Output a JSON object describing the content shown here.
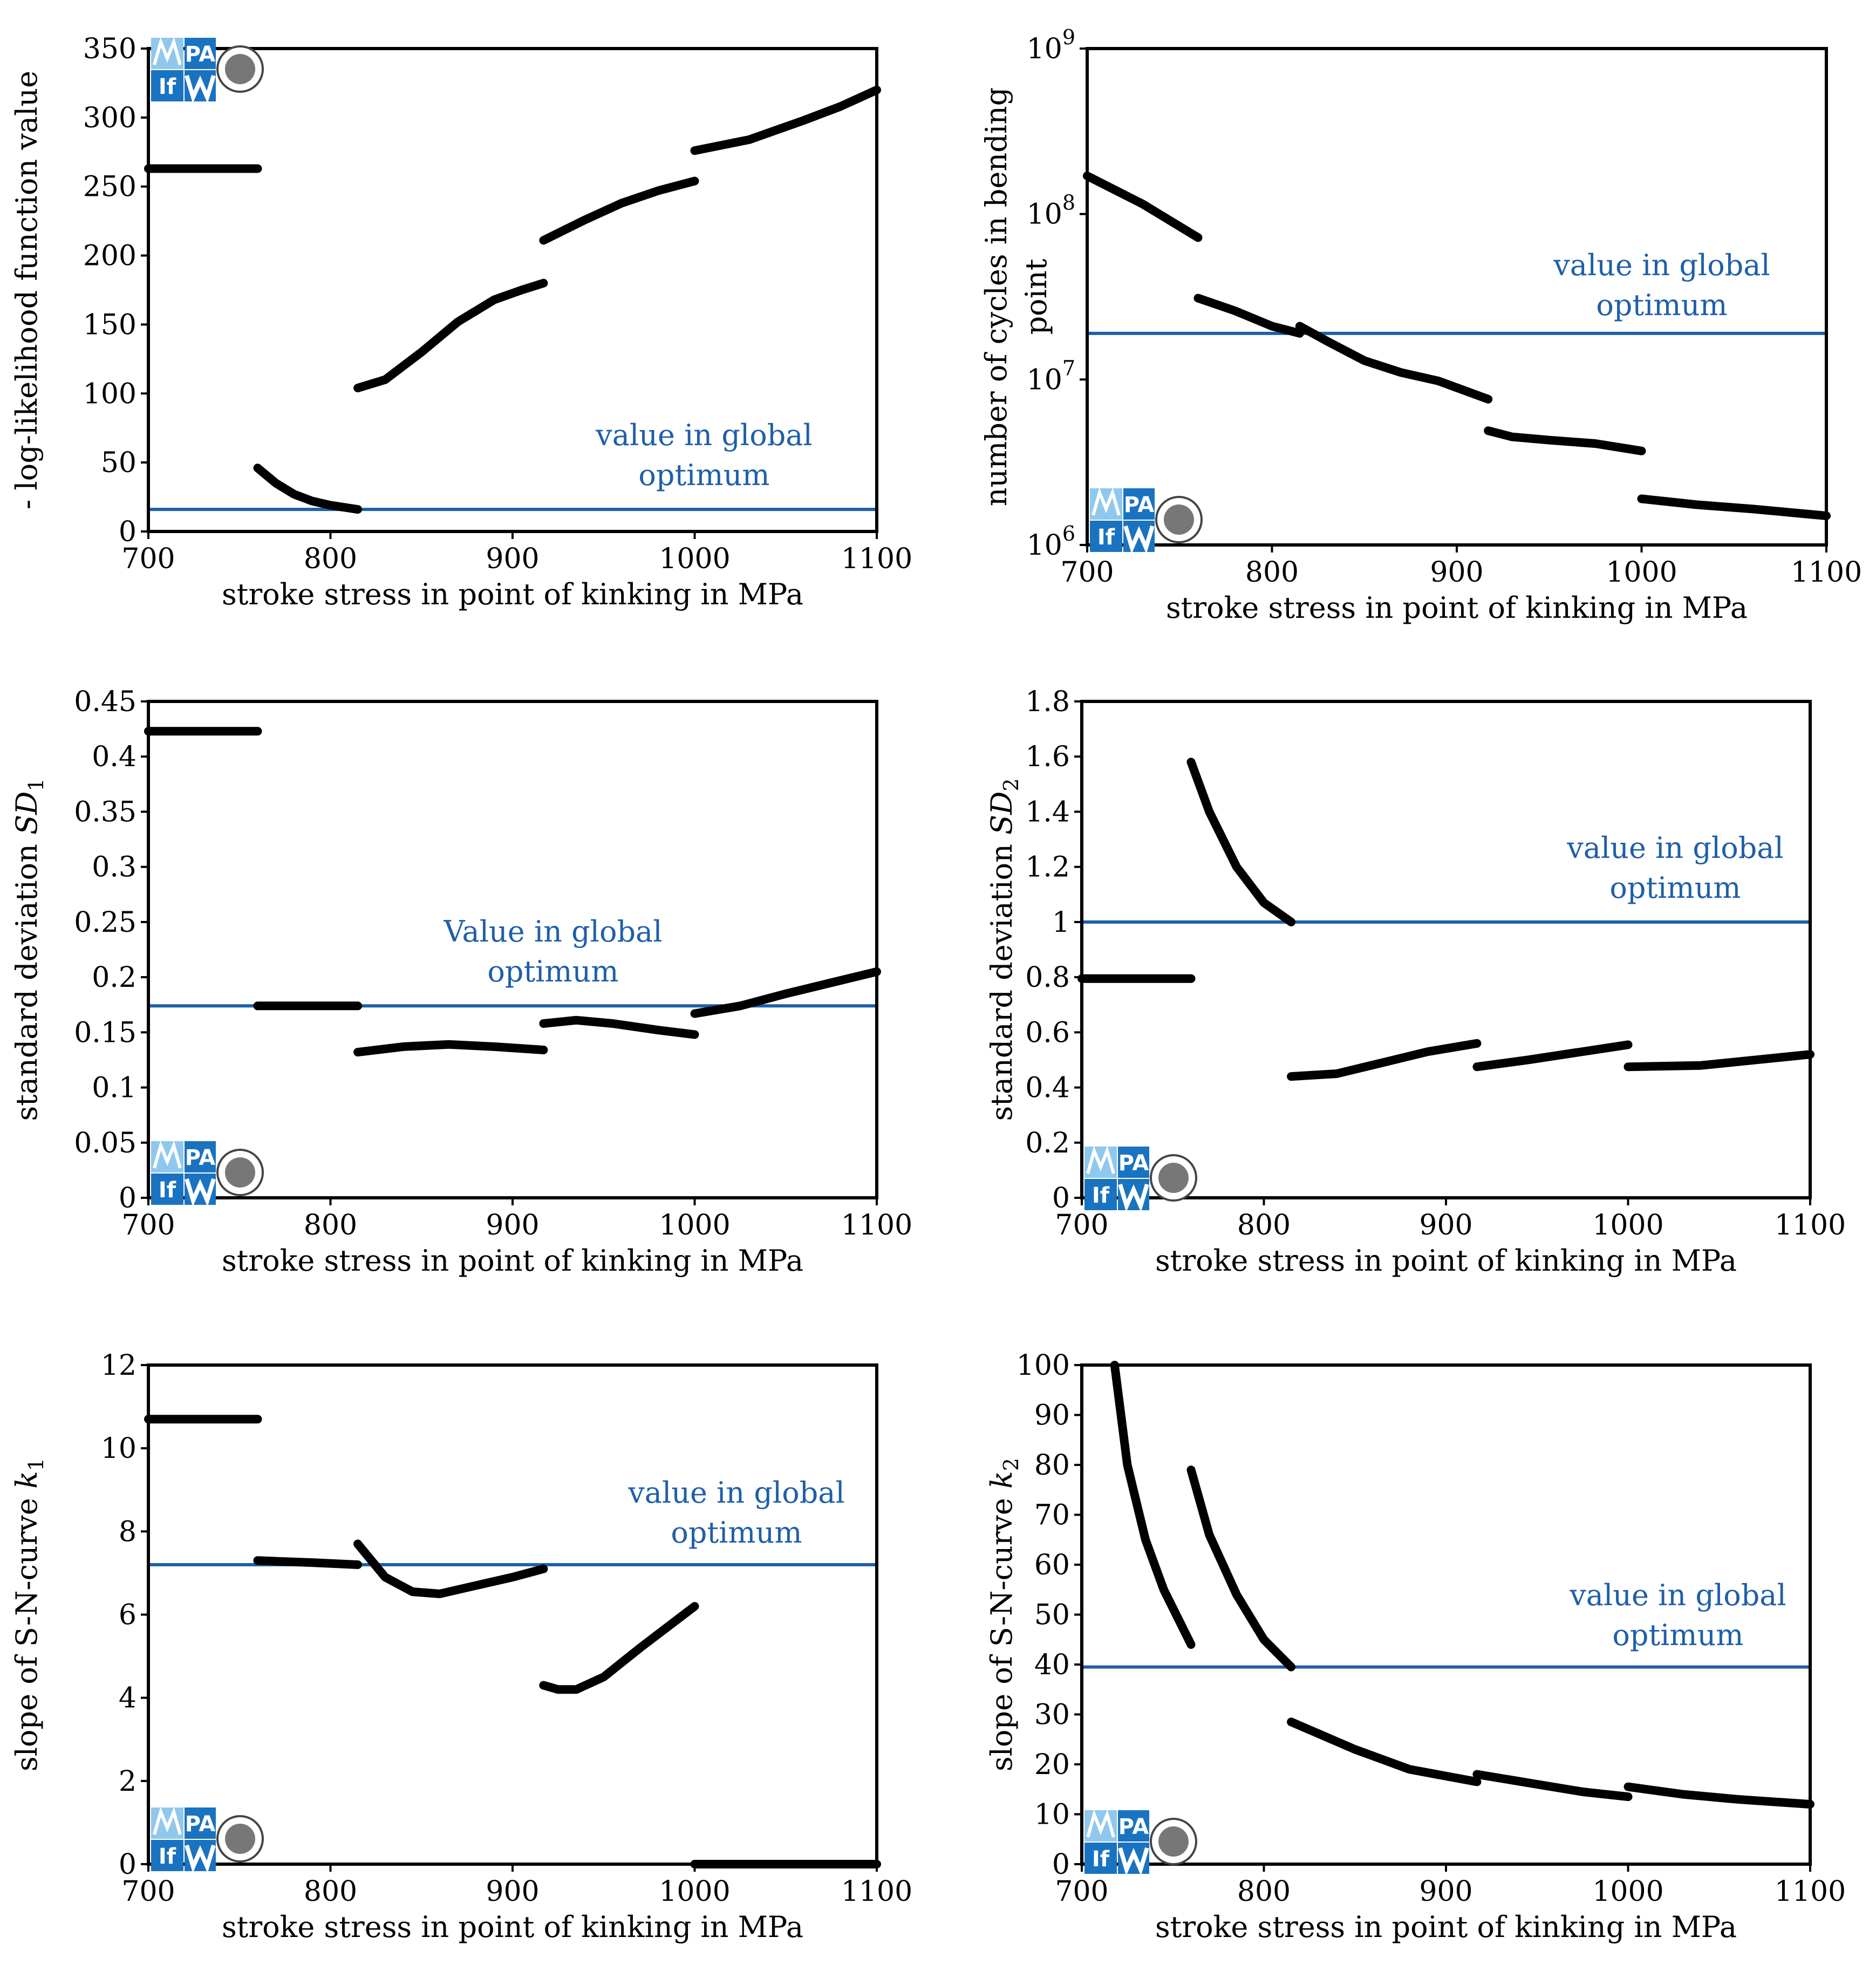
{
  "figure": {
    "colors": {
      "curve": "#000000",
      "optimum_line": "#1f5fa8",
      "optimum_text": "#1f5fa8",
      "logo_dark": "#1a73c0",
      "logo_light": "#8fc8ec"
    },
    "logo": {
      "top_text": "PA",
      "bottom_text": "If",
      "icon": "mpa-ifw-logo-icon"
    }
  },
  "chart_data": [
    {
      "type": "line",
      "id": "nll",
      "title": "",
      "xlabel": "stroke stress in point of kinking in MPa",
      "ylabel": "- log-likelihood function value",
      "xlim": [
        700,
        1100
      ],
      "ylim": [
        0,
        350
      ],
      "scale": "linear",
      "xticks": [
        "700",
        "800",
        "900",
        "1000",
        "1100"
      ],
      "yticks": [
        "0",
        "50",
        "100",
        "150",
        "200",
        "250",
        "300",
        "350"
      ],
      "optimum_value": 16,
      "optimum_label": [
        "value in global",
        "optimum"
      ],
      "series": [
        {
          "name": "segment 1",
          "x": [
            700,
            760
          ],
          "y": [
            263,
            263
          ]
        },
        {
          "name": "segment 2",
          "x": [
            760,
            770,
            780,
            790,
            800,
            815
          ],
          "y": [
            46,
            35,
            27,
            22,
            19,
            16
          ]
        },
        {
          "name": "segment 3",
          "x": [
            815,
            830,
            850,
            870,
            890,
            905,
            917
          ],
          "y": [
            104,
            110,
            130,
            152,
            168,
            175,
            180
          ]
        },
        {
          "name": "segment 4",
          "x": [
            917,
            940,
            960,
            980,
            1000
          ],
          "y": [
            211,
            226,
            238,
            247,
            254
          ]
        },
        {
          "name": "segment 5",
          "x": [
            1000,
            1030,
            1060,
            1080,
            1100
          ],
          "y": [
            276,
            284,
            298,
            308,
            320
          ]
        }
      ]
    },
    {
      "type": "line",
      "id": "cycles",
      "title": "",
      "xlabel": "stroke stress in point of kinking in MPa",
      "ylabel": [
        "number of cycles in bending",
        "point"
      ],
      "xlim": [
        700,
        1100
      ],
      "ylim": [
        1000000,
        1000000000
      ],
      "scale": "log",
      "xticks": [
        "700",
        "800",
        "900",
        "1000",
        "1100"
      ],
      "yticks": [
        "10^6",
        "10^7",
        "10^8",
        "10^9"
      ],
      "optimum_value": 19000000,
      "optimum_label": [
        "value in global",
        "optimum"
      ],
      "series": [
        {
          "name": "segment 1",
          "x": [
            700,
            730,
            760
          ],
          "y": [
            170000000,
            115000000,
            72000000
          ]
        },
        {
          "name": "segment 2",
          "x": [
            760,
            780,
            800,
            815
          ],
          "y": [
            31000000,
            26000000,
            21000000,
            19000000
          ]
        },
        {
          "name": "segment 3",
          "x": [
            815,
            830,
            850,
            870,
            890,
            917
          ],
          "y": [
            21000000,
            17000000,
            13000000,
            11000000,
            9800000,
            7600000
          ]
        },
        {
          "name": "segment 4",
          "x": [
            917,
            930,
            950,
            975,
            1000
          ],
          "y": [
            4900000,
            4500000,
            4300000,
            4100000,
            3700000
          ]
        },
        {
          "name": "segment 5",
          "x": [
            1000,
            1030,
            1060,
            1100
          ],
          "y": [
            1900000,
            1750000,
            1650000,
            1500000
          ]
        }
      ]
    },
    {
      "type": "line",
      "id": "sd1",
      "title": "",
      "xlabel": "stroke stress in point of kinking in MPa",
      "ylabel": "standard deviation SD1",
      "ylabel_main": "standard deviation ",
      "ylabel_var": "SD",
      "ylabel_sub": "1",
      "xlim": [
        700,
        1100
      ],
      "ylim": [
        0,
        0.45
      ],
      "scale": "linear",
      "xticks": [
        "700",
        "800",
        "900",
        "1000",
        "1100"
      ],
      "yticks": [
        "0",
        "0.05",
        "0.1",
        "0.15",
        "0.2",
        "0.25",
        "0.3",
        "0.35",
        "0.4",
        "0.45"
      ],
      "optimum_value": 0.174,
      "optimum_label": [
        "Value in global",
        "optimum"
      ],
      "series": [
        {
          "name": "segment 1",
          "x": [
            700,
            760
          ],
          "y": [
            0.423,
            0.423
          ]
        },
        {
          "name": "segment 2",
          "x": [
            760,
            815
          ],
          "y": [
            0.174,
            0.174
          ]
        },
        {
          "name": "segment 3",
          "x": [
            815,
            840,
            865,
            890,
            917
          ],
          "y": [
            0.132,
            0.137,
            0.139,
            0.137,
            0.134
          ]
        },
        {
          "name": "segment 4",
          "x": [
            917,
            935,
            955,
            980,
            1000
          ],
          "y": [
            0.158,
            0.161,
            0.158,
            0.152,
            0.148
          ]
        },
        {
          "name": "segment 5",
          "x": [
            1000,
            1025,
            1050,
            1075,
            1100
          ],
          "y": [
            0.167,
            0.174,
            0.185,
            0.195,
            0.205
          ]
        }
      ]
    },
    {
      "type": "line",
      "id": "sd2",
      "title": "",
      "xlabel": "stroke stress in point of kinking in MPa",
      "ylabel": "standard deviation SD2",
      "ylabel_main": "standard deviation ",
      "ylabel_var": "SD",
      "ylabel_sub": "2",
      "xlim": [
        700,
        1100
      ],
      "ylim": [
        0,
        1.8
      ],
      "scale": "linear",
      "xticks": [
        "700",
        "800",
        "900",
        "1000",
        "1100"
      ],
      "yticks": [
        "0",
        "0.2",
        "0.4",
        "0.6",
        "0.8",
        "1",
        "1.2",
        "1.4",
        "1.6",
        "1.8"
      ],
      "optimum_value": 1.0,
      "optimum_label": [
        "value in global",
        "optimum"
      ],
      "series": [
        {
          "name": "segment 1",
          "x": [
            700,
            760
          ],
          "y": [
            0.795,
            0.795
          ]
        },
        {
          "name": "segment 2",
          "x": [
            760,
            770,
            785,
            800,
            815
          ],
          "y": [
            1.58,
            1.4,
            1.2,
            1.07,
            1.0
          ]
        },
        {
          "name": "segment 3",
          "x": [
            815,
            840,
            865,
            890,
            917
          ],
          "y": [
            0.44,
            0.45,
            0.49,
            0.53,
            0.56
          ]
        },
        {
          "name": "segment 4",
          "x": [
            917,
            945,
            975,
            1000
          ],
          "y": [
            0.475,
            0.5,
            0.53,
            0.555
          ]
        },
        {
          "name": "segment 5",
          "x": [
            1000,
            1040,
            1070,
            1100
          ],
          "y": [
            0.475,
            0.48,
            0.5,
            0.52
          ]
        }
      ]
    },
    {
      "type": "line",
      "id": "k1",
      "title": "",
      "xlabel": "stroke stress in point of kinking in MPa",
      "ylabel": "slope of S-N-curve k1",
      "ylabel_main": "slope of S-N-curve ",
      "ylabel_var": "k",
      "ylabel_sub": "1",
      "xlim": [
        700,
        1100
      ],
      "ylim": [
        0,
        12
      ],
      "scale": "linear",
      "xticks": [
        "700",
        "800",
        "900",
        "1000",
        "1100"
      ],
      "yticks": [
        "0",
        "2",
        "4",
        "6",
        "8",
        "10",
        "12"
      ],
      "optimum_value": 7.2,
      "optimum_label": [
        "value in global",
        "optimum"
      ],
      "series": [
        {
          "name": "segment 1",
          "x": [
            700,
            760
          ],
          "y": [
            10.7,
            10.7
          ]
        },
        {
          "name": "segment 2",
          "x": [
            760,
            790,
            815
          ],
          "y": [
            7.3,
            7.25,
            7.2
          ]
        },
        {
          "name": "segment 3",
          "x": [
            815,
            830,
            845,
            860,
            880,
            900,
            917
          ],
          "y": [
            7.7,
            6.9,
            6.55,
            6.5,
            6.7,
            6.9,
            7.1
          ]
        },
        {
          "name": "segment 4",
          "x": [
            917,
            925,
            935,
            950,
            970,
            985,
            1000
          ],
          "y": [
            4.3,
            4.2,
            4.2,
            4.5,
            5.2,
            5.7,
            6.2
          ]
        },
        {
          "name": "segment 5",
          "x": [
            1000,
            1100
          ],
          "y": [
            0,
            0
          ]
        }
      ]
    },
    {
      "type": "line",
      "id": "k2",
      "title": "",
      "xlabel": "stroke stress in point of kinking in MPa",
      "ylabel": "slope of S-N-curve k2",
      "ylabel_main": "slope of S-N-curve ",
      "ylabel_var": "k",
      "ylabel_sub": "2",
      "xlim": [
        700,
        1100
      ],
      "ylim": [
        0,
        100
      ],
      "scale": "linear",
      "xticks": [
        "700",
        "800",
        "900",
        "1000",
        "1100"
      ],
      "yticks": [
        "0",
        "10",
        "20",
        "30",
        "40",
        "50",
        "60",
        "70",
        "80",
        "90",
        "100"
      ],
      "optimum_value": 39.5,
      "optimum_label": [
        "value in global",
        "optimum"
      ],
      "series": [
        {
          "name": "segment 1",
          "x": [
            718,
            725,
            735,
            745,
            760
          ],
          "y": [
            100,
            80,
            65,
            55,
            44
          ]
        },
        {
          "name": "segment 2",
          "x": [
            760,
            770,
            785,
            800,
            815
          ],
          "y": [
            79,
            66,
            54,
            45,
            39.5
          ]
        },
        {
          "name": "segment 3",
          "x": [
            815,
            850,
            880,
            917
          ],
          "y": [
            28.5,
            23,
            19,
            16.5
          ]
        },
        {
          "name": "segment 4",
          "x": [
            917,
            950,
            975,
            1000
          ],
          "y": [
            18,
            16,
            14.5,
            13.5
          ]
        },
        {
          "name": "segment 5",
          "x": [
            1000,
            1030,
            1060,
            1100
          ],
          "y": [
            15.5,
            14,
            13,
            12
          ]
        }
      ]
    }
  ]
}
